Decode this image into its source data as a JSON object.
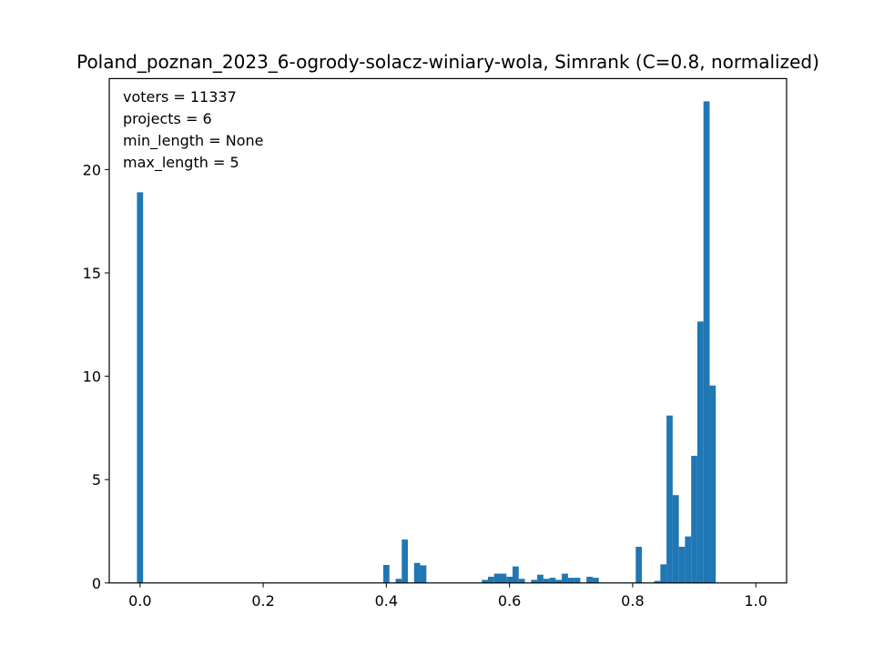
{
  "chart_data": {
    "type": "bar",
    "title": "Poland_poznan_2023_6-ogrody-solacz-winiary-wola, Simrank (C=0.8, normalized)",
    "xlabel": "",
    "ylabel": "",
    "xlim": [
      -0.05,
      1.05
    ],
    "ylim": [
      0,
      24.4
    ],
    "x_ticks": [
      "0.0",
      "0.2",
      "0.4",
      "0.6",
      "0.8",
      "1.0"
    ],
    "y_ticks": [
      "0",
      "5",
      "10",
      "15",
      "20"
    ],
    "bin_width": 0.01,
    "color": "#1f77b4",
    "grid": false,
    "annotations": [
      "voters = 11337",
      "projects = 6",
      "min_length = None",
      "max_length = 5"
    ],
    "bins": [
      {
        "x": 0.0,
        "value": 18.9
      },
      {
        "x": 0.4,
        "value": 0.87
      },
      {
        "x": 0.42,
        "value": 0.2
      },
      {
        "x": 0.43,
        "value": 2.1
      },
      {
        "x": 0.45,
        "value": 0.97
      },
      {
        "x": 0.46,
        "value": 0.85
      },
      {
        "x": 0.56,
        "value": 0.15
      },
      {
        "x": 0.57,
        "value": 0.3
      },
      {
        "x": 0.58,
        "value": 0.45
      },
      {
        "x": 0.59,
        "value": 0.45
      },
      {
        "x": 0.6,
        "value": 0.3
      },
      {
        "x": 0.61,
        "value": 0.8
      },
      {
        "x": 0.62,
        "value": 0.2
      },
      {
        "x": 0.64,
        "value": 0.15
      },
      {
        "x": 0.65,
        "value": 0.4
      },
      {
        "x": 0.66,
        "value": 0.2
      },
      {
        "x": 0.67,
        "value": 0.25
      },
      {
        "x": 0.68,
        "value": 0.15
      },
      {
        "x": 0.69,
        "value": 0.45
      },
      {
        "x": 0.7,
        "value": 0.25
      },
      {
        "x": 0.71,
        "value": 0.25
      },
      {
        "x": 0.73,
        "value": 0.3
      },
      {
        "x": 0.74,
        "value": 0.25
      },
      {
        "x": 0.81,
        "value": 1.75
      },
      {
        "x": 0.84,
        "value": 0.1
      },
      {
        "x": 0.85,
        "value": 0.9
      },
      {
        "x": 0.86,
        "value": 8.1
      },
      {
        "x": 0.87,
        "value": 4.25
      },
      {
        "x": 0.88,
        "value": 1.75
      },
      {
        "x": 0.89,
        "value": 2.25
      },
      {
        "x": 0.9,
        "value": 6.15
      },
      {
        "x": 0.91,
        "value": 12.65
      },
      {
        "x": 0.92,
        "value": 23.3
      },
      {
        "x": 0.93,
        "value": 9.55
      }
    ]
  }
}
